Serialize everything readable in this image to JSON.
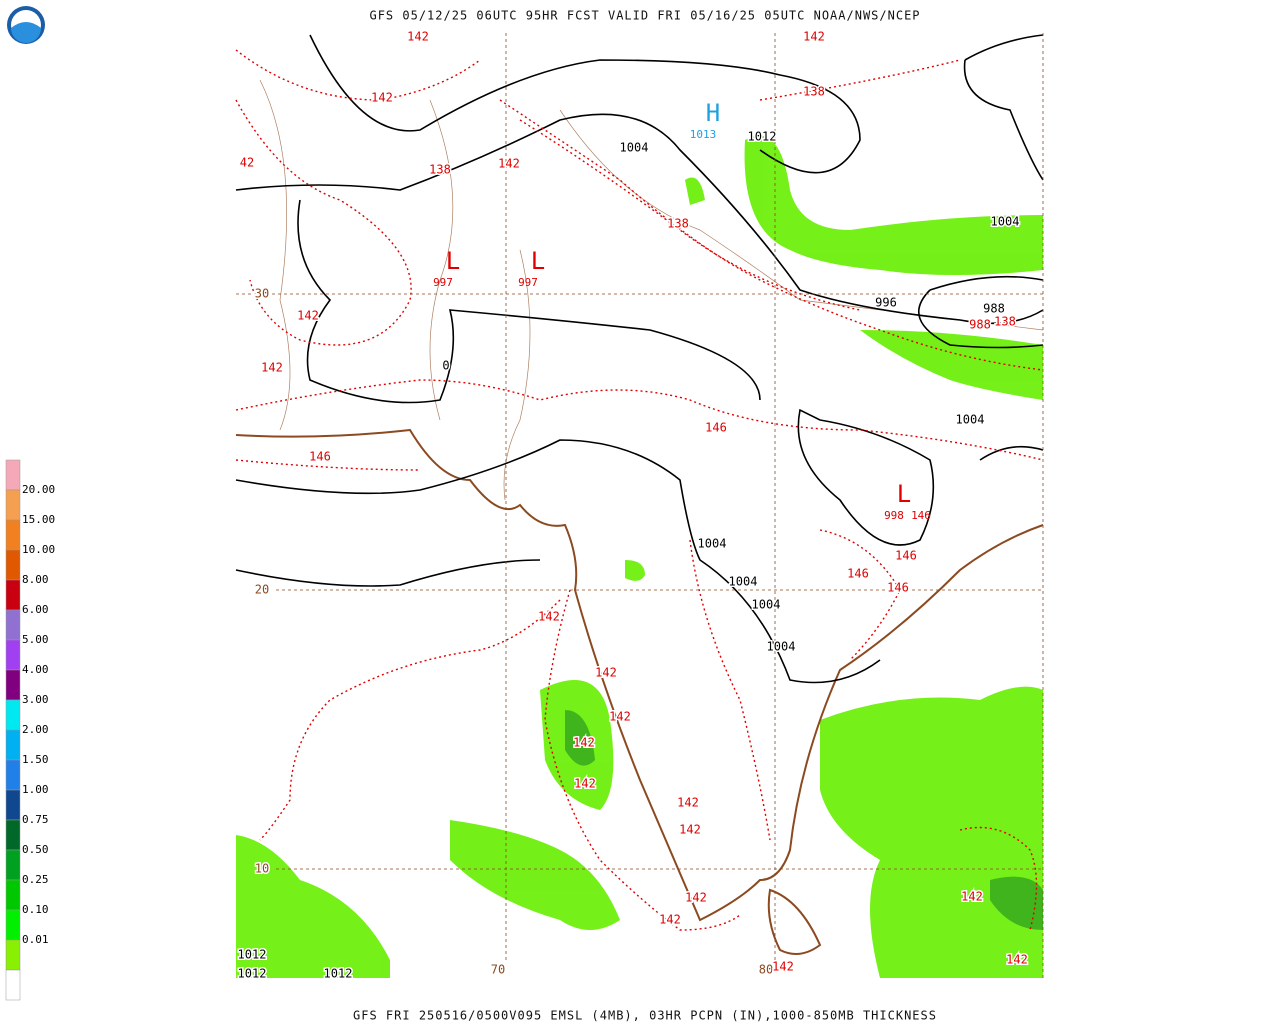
{
  "header": {
    "title": "GFS 05/12/25 06UTC 95HR FCST VALID FRI 05/16/25 05UTC NOAA/NWS/NCEP"
  },
  "footer": {
    "text": "GFS FRI 250516/0500V095 EMSL (4MB), 03HR PCPN (IN),1000-850MB THICKNESS"
  },
  "legend": {
    "labels": [
      "20.00",
      "15.00",
      "10.00",
      "8.00",
      "6.00",
      "5.00",
      "4.00",
      "3.00",
      "2.00",
      "1.50",
      "1.00",
      "0.75",
      "0.50",
      "0.25",
      "0.10",
      "0.01"
    ],
    "colors": [
      "#f4a8b8",
      "#f4a050",
      "#f08020",
      "#e05800",
      "#c80010",
      "#9070d0",
      "#a040f0",
      "#800080",
      "#00e8f0",
      "#00b0f0",
      "#2080e8",
      "#104890",
      "#006828",
      "#00a020",
      "#00c800",
      "#00f000",
      "#88f000",
      "#ffffff"
    ]
  },
  "grid_labels": [
    "30",
    "20",
    "10",
    "70",
    "80"
  ],
  "isobar_labels": [
    "1004",
    "1012",
    "1004",
    "996",
    "988",
    "1004",
    "1004",
    "1004",
    "1004",
    "1004",
    "1012",
    "1012",
    "1012",
    "0"
  ],
  "thickness_labels": [
    "142",
    "142",
    "142",
    "138",
    "42",
    "138",
    "142",
    "138",
    "142",
    "142",
    "146",
    "146",
    "988",
    "138",
    "146",
    "146",
    "146",
    "142",
    "142",
    "142",
    "142",
    "142",
    "142",
    "142",
    "142",
    "142",
    "142",
    "142",
    "142"
  ],
  "pressure_centers": [
    {
      "symbol": "H",
      "value": "1013"
    },
    {
      "symbol": "L",
      "value": "997"
    },
    {
      "symbol": "L",
      "value": "997"
    },
    {
      "symbol": "L",
      "value": "998"
    }
  ],
  "extra_label": "146"
}
